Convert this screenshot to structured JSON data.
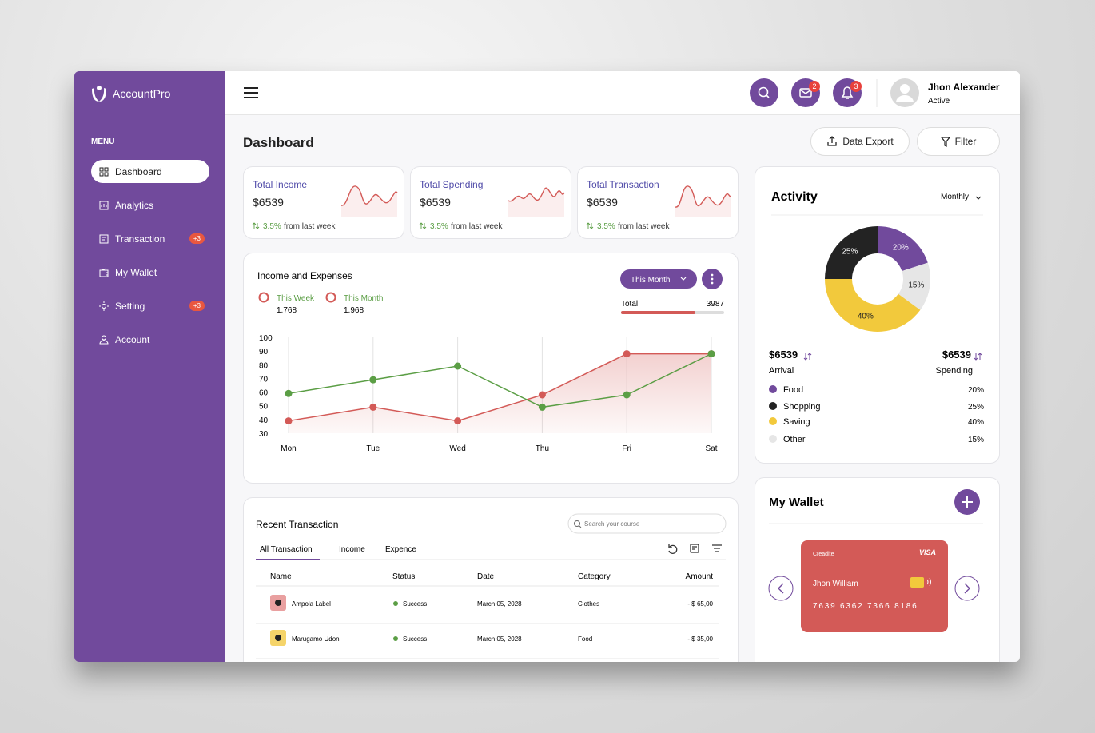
{
  "brand": "AccountPro",
  "sidebar": {
    "menu_label": "MENU",
    "items": [
      {
        "label": "Dashboard"
      },
      {
        "label": "Analytics"
      },
      {
        "label": "Transaction",
        "badge": "+3"
      },
      {
        "label": "My Wallet"
      },
      {
        "label": "Setting",
        "badge": "+3"
      },
      {
        "label": "Account"
      }
    ]
  },
  "header": {
    "mail_badge": "2",
    "bell_badge": "3",
    "user_name": "Jhon Alexander",
    "user_status": "Active"
  },
  "page_title": "Dashboard",
  "actions": [
    "Data Export",
    "Filter"
  ],
  "stats": [
    {
      "title": "Total Income",
      "value": "$6539",
      "change": "3.5%",
      "change_note": "from last week"
    },
    {
      "title": "Total Spending",
      "value": "$6539",
      "change": "3.5%",
      "change_note": "from last week"
    },
    {
      "title": "Total Transaction",
      "value": "$6539",
      "change": "3.5%",
      "change_note": "from last week"
    }
  ],
  "income_chart": {
    "type": "line",
    "title": "Income and Expenses",
    "button": "This Month",
    "total_label": "Total",
    "total_value": "3987",
    "categories": [
      "Mon",
      "Tue",
      "Wed",
      "Thu",
      "Fri",
      "Sat"
    ],
    "series": [
      {
        "name": "This Week",
        "total": "1.768",
        "color": "#d35a57",
        "values": [
          39,
          49,
          39,
          58,
          88,
          88
        ]
      },
      {
        "name": "This Month",
        "total": "1.968",
        "color": "#5b9e45",
        "values": [
          59,
          69,
          79,
          49,
          58,
          88
        ]
      }
    ],
    "ylim": [
      30,
      100
    ],
    "yticks": [
      30,
      40,
      50,
      60,
      70,
      80,
      90,
      100
    ]
  },
  "activity": {
    "type": "pie",
    "title": "Activity",
    "period": "Monthly",
    "categories": [
      "Food",
      "Shopping",
      "Saving",
      "Other"
    ],
    "values": [
      20,
      25,
      40,
      15
    ],
    "value_labels": [
      "20%",
      "25%",
      "40%",
      "15%"
    ],
    "colors": [
      "#714a9c",
      "#232323",
      "#f2c93c",
      "#e6e6e6"
    ],
    "arrival": {
      "value": "$6539",
      "label": "Arrival"
    },
    "spending": {
      "value": "$6539",
      "label": "Spending"
    }
  },
  "transactions": {
    "title": "Recent Transaction",
    "search_placeholder": "Search your course",
    "tabs": [
      "All Transaction",
      "Income",
      "Expence"
    ],
    "columns": [
      "Name",
      "Status",
      "Date",
      "Category",
      "Amount"
    ],
    "rows": [
      [
        "Ampola Label",
        "Success",
        "March 05, 2028",
        "Clothes",
        "- $ 65,00"
      ],
      [
        "Marugamo Udon",
        "Success",
        "March 05, 2028",
        "Food",
        "- $ 35,00"
      ]
    ]
  },
  "wallet": {
    "title": "My Wallet",
    "card": {
      "label": "Creadite",
      "brand": "VISA",
      "holder": "Jhon William",
      "number": "7639 6362 7366 8186"
    }
  }
}
